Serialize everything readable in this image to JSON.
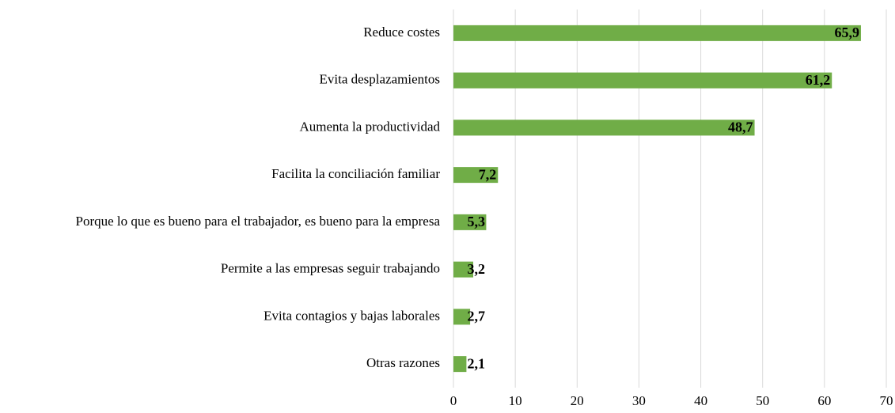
{
  "chart_data": {
    "type": "bar",
    "categories": [
      "Reduce costes",
      "Evita desplazamientos",
      "Aumenta la productividad",
      "Facilita la conciliación familiar",
      "Porque lo que es bueno para el trabajador, es bueno para la empresa",
      "Permite a las empresas seguir trabajando",
      "Evita contagios y bajas laborales",
      "Otras razones"
    ],
    "values": [
      65.9,
      61.2,
      48.7,
      7.2,
      5.3,
      3.2,
      2.7,
      2.1
    ],
    "value_labels": [
      "65,9",
      "61,2",
      "48,7",
      "7,2",
      "5,3",
      "3,2",
      "2,7",
      "2,1"
    ],
    "color": "#70ad47",
    "xlim": [
      0,
      70
    ],
    "xticks": [
      0,
      10,
      20,
      30,
      40,
      50,
      60,
      70
    ],
    "grid": true
  }
}
